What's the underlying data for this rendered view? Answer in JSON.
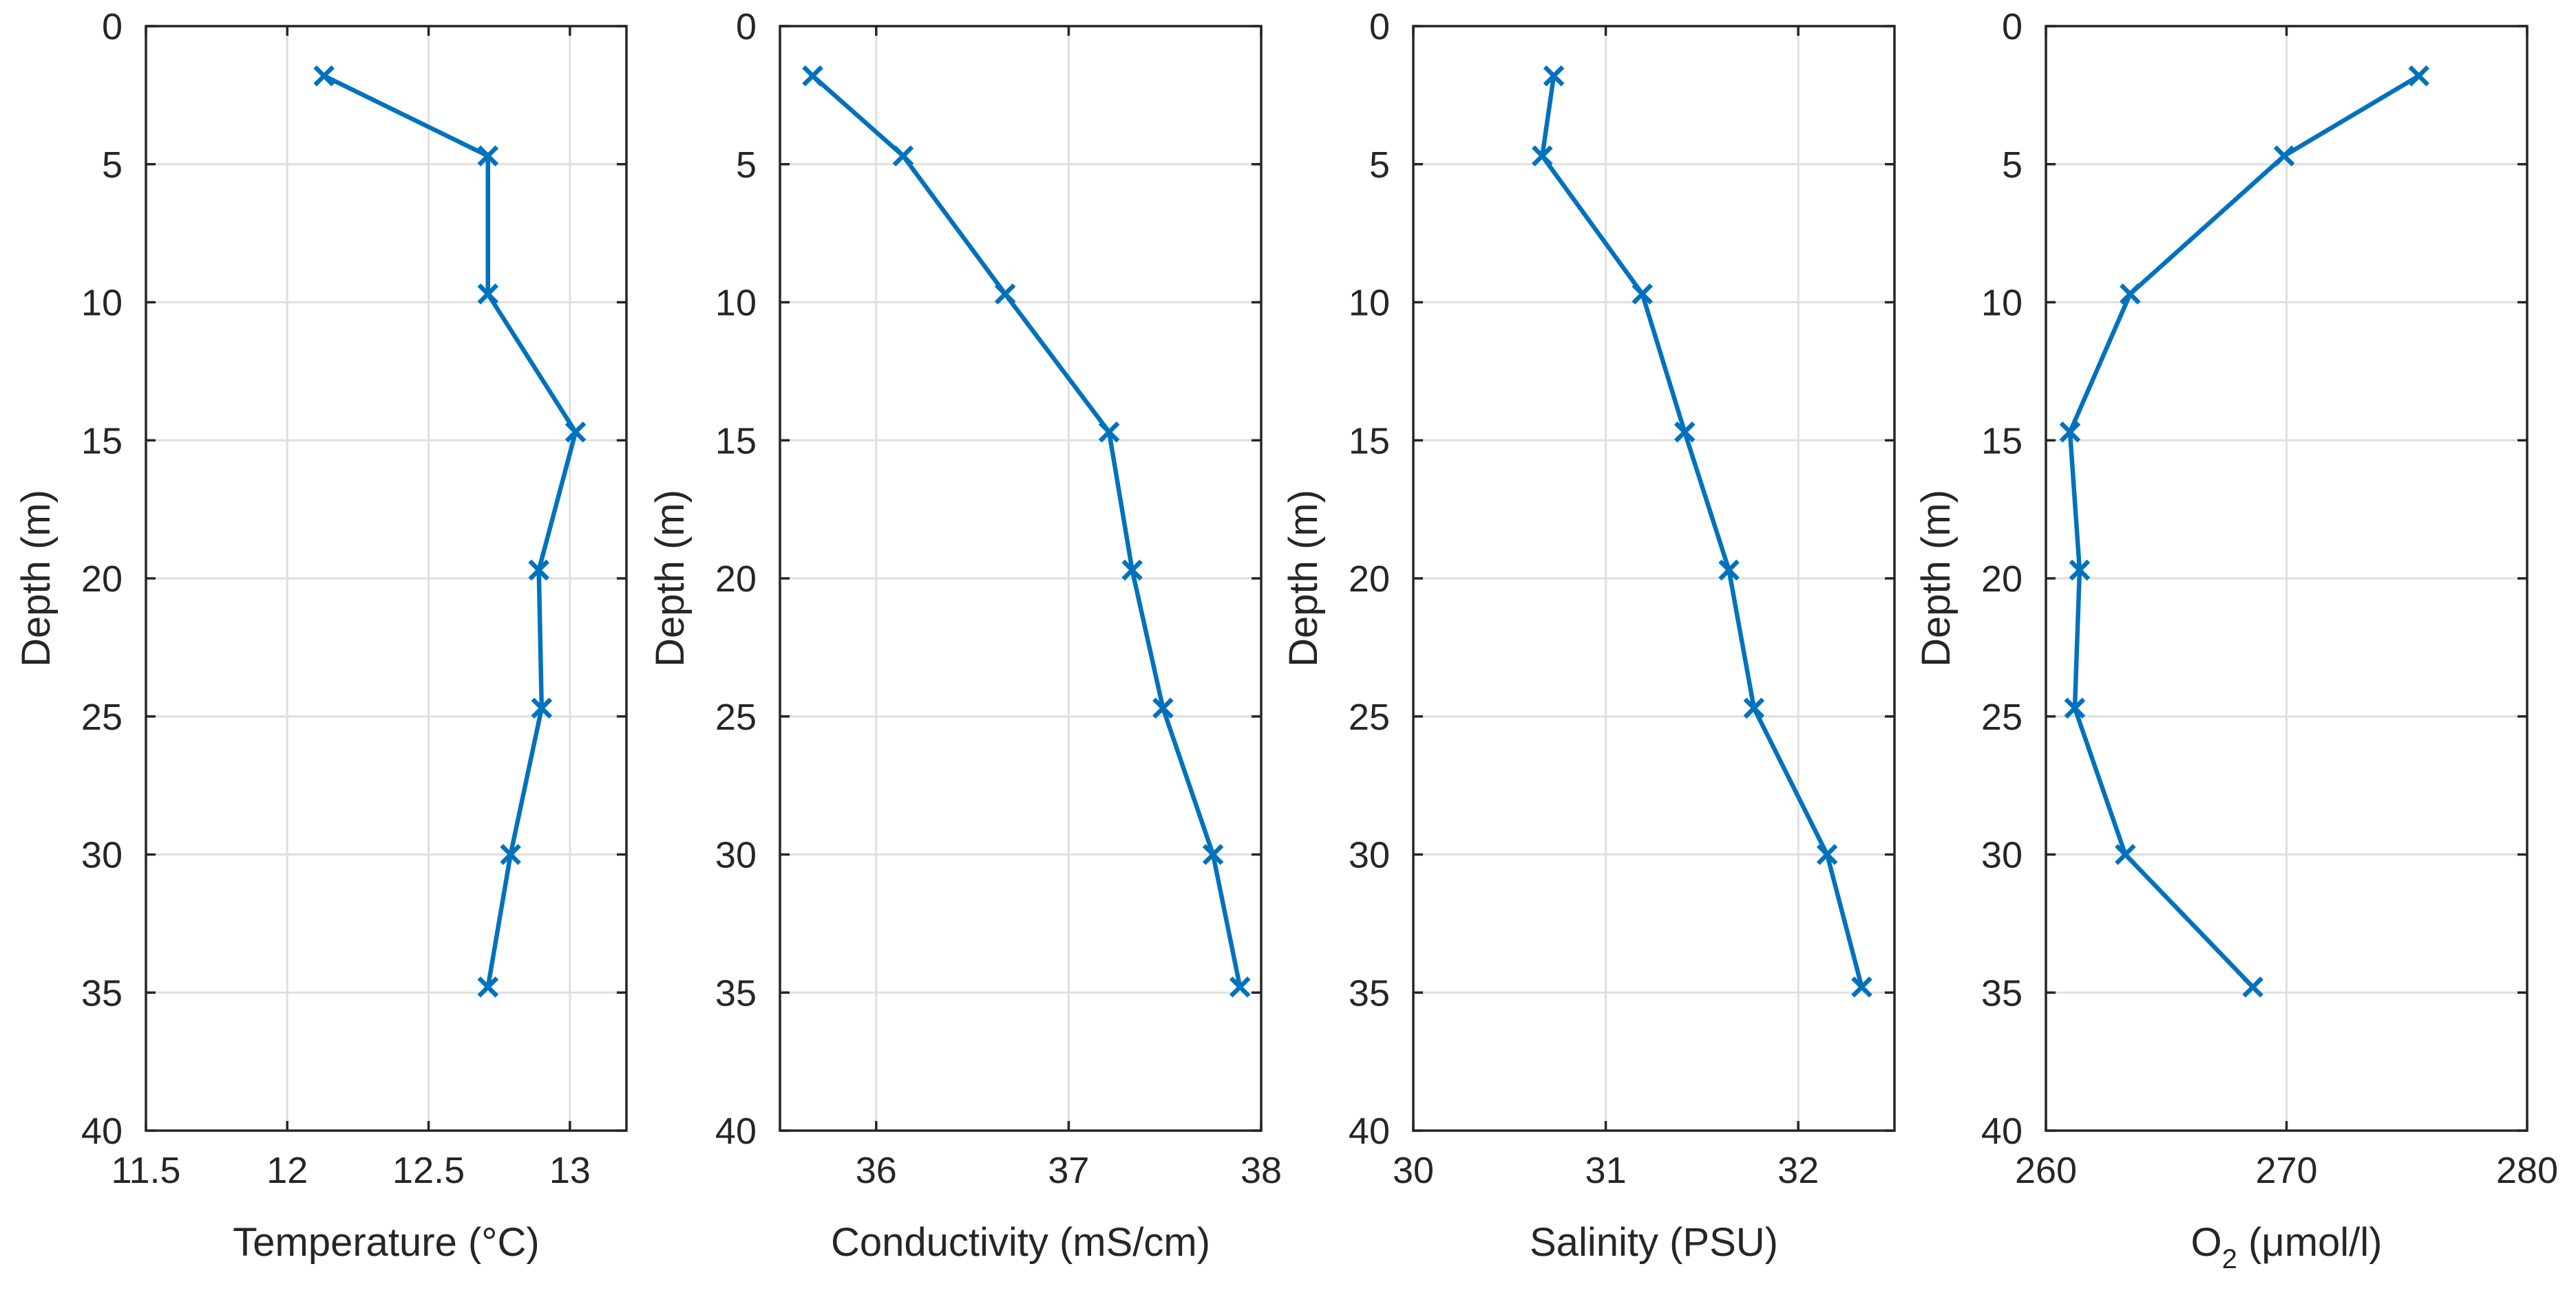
{
  "chart_data": [
    {
      "type": "line",
      "orientation": "depth-profile",
      "xlabel": "Temperature (°C)",
      "ylabel": "Depth (m)",
      "xlim": [
        11.5,
        13.2
      ],
      "ylim": [
        0,
        40
      ],
      "y_reversed": true,
      "xticks": [
        11.5,
        12,
        12.5,
        13
      ],
      "xtick_labels": [
        "11.5",
        "12",
        "12.5",
        "13"
      ],
      "yticks": [
        0,
        5,
        10,
        15,
        20,
        25,
        30,
        35,
        40
      ],
      "ytick_labels": [
        "0",
        "5",
        "10",
        "15",
        "20",
        "25",
        "30",
        "35",
        "40"
      ],
      "grid": true,
      "marker": "x",
      "color": "#0072BD",
      "series": [
        {
          "name": "Temperature",
          "x": [
            12.13,
            12.71,
            12.71,
            13.02,
            12.89,
            12.9,
            12.79,
            12.71
          ],
          "y": [
            1.8,
            4.7,
            9.7,
            14.7,
            19.7,
            24.7,
            30.0,
            34.8
          ]
        }
      ]
    },
    {
      "type": "line",
      "orientation": "depth-profile",
      "xlabel": "Conductivity (mS/cm)",
      "ylabel": "Depth (m)",
      "xlim": [
        35.5,
        38
      ],
      "ylim": [
        0,
        40
      ],
      "y_reversed": true,
      "xticks": [
        36,
        37,
        38
      ],
      "xtick_labels": [
        "36",
        "37",
        "38"
      ],
      "yticks": [
        0,
        5,
        10,
        15,
        20,
        25,
        30,
        35,
        40
      ],
      "ytick_labels": [
        "0",
        "5",
        "10",
        "15",
        "20",
        "25",
        "30",
        "35",
        "40"
      ],
      "grid": true,
      "marker": "x",
      "color": "#0072BD",
      "series": [
        {
          "name": "Conductivity",
          "x": [
            35.67,
            36.14,
            36.67,
            37.21,
            37.33,
            37.49,
            37.75,
            37.89
          ],
          "y": [
            1.8,
            4.7,
            9.7,
            14.7,
            19.7,
            24.7,
            30.0,
            34.8
          ]
        }
      ]
    },
    {
      "type": "line",
      "orientation": "depth-profile",
      "xlabel": "Salinity (PSU)",
      "ylabel": "Depth (m)",
      "xlim": [
        30,
        32.5
      ],
      "ylim": [
        0,
        40
      ],
      "y_reversed": true,
      "xticks": [
        30,
        31,
        32
      ],
      "xtick_labels": [
        "30",
        "31",
        "32"
      ],
      "yticks": [
        0,
        5,
        10,
        15,
        20,
        25,
        30,
        35,
        40
      ],
      "ytick_labels": [
        "0",
        "5",
        "10",
        "15",
        "20",
        "25",
        "30",
        "35",
        "40"
      ],
      "grid": true,
      "marker": "x",
      "color": "#0072BD",
      "series": [
        {
          "name": "Salinity",
          "x": [
            30.73,
            30.67,
            31.19,
            31.41,
            31.64,
            31.77,
            32.15,
            32.33
          ],
          "y": [
            1.8,
            4.7,
            9.7,
            14.7,
            19.7,
            24.7,
            30.0,
            34.8
          ]
        }
      ]
    },
    {
      "type": "line",
      "orientation": "depth-profile",
      "xlabel": "O2 (μmol/l)",
      "xlabel_parts": {
        "base": "O",
        "subscript": "2",
        "rest": " (μmol/l)"
      },
      "ylabel": "Depth (m)",
      "xlim": [
        260,
        280
      ],
      "ylim": [
        0,
        40
      ],
      "y_reversed": true,
      "xticks": [
        260,
        270,
        280
      ],
      "xtick_labels": [
        "260",
        "270",
        "280"
      ],
      "yticks": [
        0,
        5,
        10,
        15,
        20,
        25,
        30,
        35,
        40
      ],
      "ytick_labels": [
        "0",
        "5",
        "10",
        "15",
        "20",
        "25",
        "30",
        "35",
        "40"
      ],
      "grid": true,
      "marker": "x",
      "color": "#0072BD",
      "series": [
        {
          "name": "O2",
          "x": [
            275.5,
            269.9,
            263.5,
            261.0,
            261.4,
            261.2,
            263.3,
            268.6
          ],
          "y": [
            1.8,
            4.7,
            9.7,
            14.7,
            19.7,
            24.7,
            30.0,
            34.8
          ]
        }
      ]
    }
  ]
}
